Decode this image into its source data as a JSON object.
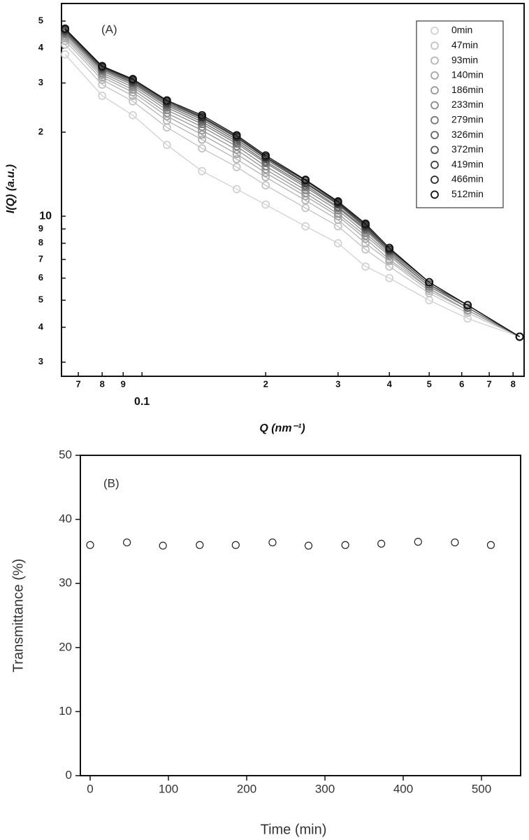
{
  "chart_data": [
    {
      "type": "scatter",
      "panel_label": "(A)",
      "x_label": "Q (nm⁻¹)",
      "y_label": "I(Q) (a.u.)",
      "log_scale": {
        "x": true,
        "y": true
      },
      "legend": "upper right",
      "xlim": [
        0.0637,
        0.851
      ],
      "ylim": [
        2.67,
        57.8
      ],
      "xticks": [
        {
          "value": 0.07,
          "label": "7"
        },
        {
          "value": 0.08,
          "label": "8"
        },
        {
          "value": 0.09,
          "label": "9"
        },
        0.1,
        {
          "value": 0.2,
          "label": "2"
        },
        {
          "value": 0.3,
          "label": "3"
        },
        {
          "value": 0.4,
          "label": "4"
        },
        {
          "value": 0.5,
          "label": "5"
        },
        {
          "value": 0.6,
          "label": "6"
        },
        {
          "value": 0.7,
          "label": "7"
        },
        {
          "value": 0.8,
          "label": "8"
        }
      ],
      "yticks": [
        3,
        4,
        5,
        6,
        7,
        8,
        9,
        10,
        {
          "value": 20,
          "label": "2"
        },
        {
          "value": 30,
          "label": "3"
        },
        {
          "value": 40,
          "label": "4"
        },
        {
          "value": 50,
          "label": "5"
        }
      ],
      "x": [
        0.065,
        0.08,
        0.095,
        0.115,
        0.14,
        0.17,
        0.2,
        0.25,
        0.3,
        0.35,
        0.4,
        0.5,
        0.62,
        0.83
      ],
      "series": [
        {
          "name": "0min",
          "color": "#d2d2d2",
          "values": [
            38,
            27,
            23,
            18,
            14.5,
            12.5,
            11,
            9.2,
            8,
            6.6,
            6,
            5,
            4.3,
            3.7
          ]
        },
        {
          "name": "47min",
          "color": "#c4c4c4",
          "values": [
            41.2,
            29.6,
            25.8,
            20.8,
            17.5,
            15,
            12.9,
            10.7,
            9.2,
            7.6,
            6.6,
            5.3,
            4.5,
            3.7
          ]
        },
        {
          "name": "93min",
          "color": "#b5b5b5",
          "values": [
            42.5,
            30.8,
            27,
            22,
            18.8,
            16,
            13.8,
            11.4,
            9.7,
            8,
            6.9,
            5.4,
            4.6,
            3.7
          ]
        },
        {
          "name": "140min",
          "color": "#a6a6a6",
          "values": [
            43.4,
            31.5,
            27.8,
            22.8,
            19.6,
            16.7,
            14.3,
            11.8,
            10,
            8.3,
            7,
            5.5,
            4.6,
            3.7
          ]
        },
        {
          "name": "186min",
          "color": "#979797",
          "values": [
            44.1,
            32.1,
            28.4,
            23.4,
            20.3,
            17.3,
            14.7,
            12.1,
            10.2,
            8.5,
            7.2,
            5.5,
            4.6,
            3.7
          ]
        },
        {
          "name": "233min",
          "color": "#888888",
          "values": [
            44.8,
            32.6,
            29,
            24,
            20.9,
            17.8,
            15.1,
            12.4,
            10.5,
            8.7,
            7.3,
            5.6,
            4.7,
            3.7
          ]
        },
        {
          "name": "279min",
          "color": "#777777",
          "values": [
            45.3,
            33.1,
            29.5,
            24.5,
            21.4,
            18.2,
            15.5,
            12.7,
            10.7,
            8.9,
            7.4,
            5.6,
            4.7,
            3.7
          ]
        },
        {
          "name": "326min",
          "color": "#666666",
          "values": [
            45.7,
            33.5,
            29.9,
            24.9,
            21.8,
            18.5,
            15.7,
            12.9,
            10.8,
            9,
            7.5,
            5.7,
            4.7,
            3.7
          ]
        },
        {
          "name": "372min",
          "color": "#555555",
          "values": [
            46.1,
            33.8,
            30.2,
            25.2,
            22.2,
            18.8,
            16,
            13.1,
            11,
            9.1,
            7.5,
            5.7,
            4.8,
            3.7
          ]
        },
        {
          "name": "419min",
          "color": "#404040",
          "values": [
            46.5,
            34.1,
            30.5,
            25.5,
            22.5,
            19.1,
            16.2,
            13.2,
            11.1,
            9.2,
            7.6,
            5.8,
            4.8,
            3.7
          ]
        },
        {
          "name": "466min",
          "color": "#2a2a2a",
          "values": [
            46.7,
            34.3,
            30.8,
            25.8,
            22.7,
            19.3,
            16.3,
            13.4,
            11.2,
            9.3,
            7.6,
            5.8,
            4.8,
            3.7
          ]
        },
        {
          "name": "512min",
          "color": "#111111",
          "values": [
            47,
            34.5,
            31,
            26,
            23,
            19.5,
            16.5,
            13.5,
            11.3,
            9.4,
            7.7,
            5.8,
            4.8,
            3.7
          ]
        }
      ]
    },
    {
      "type": "scatter",
      "panel_label": "(B)",
      "x_label": "Time (min)",
      "y_label": "Transmittance (%)",
      "xlim": [
        -12.5,
        550
      ],
      "ylim": [
        0,
        50
      ],
      "xticks": [
        0,
        100,
        200,
        300,
        400,
        500
      ],
      "yticks": [
        0,
        10,
        20,
        30,
        40,
        50
      ],
      "x": [
        0,
        47,
        93,
        140,
        186,
        233,
        279,
        326,
        372,
        419,
        466,
        512
      ],
      "series": [
        {
          "name": null,
          "color": "#222222",
          "values": [
            36.0,
            36.4,
            35.9,
            36.0,
            36.0,
            36.4,
            35.9,
            36.0,
            36.2,
            36.5,
            36.4,
            36.0
          ]
        }
      ]
    }
  ]
}
